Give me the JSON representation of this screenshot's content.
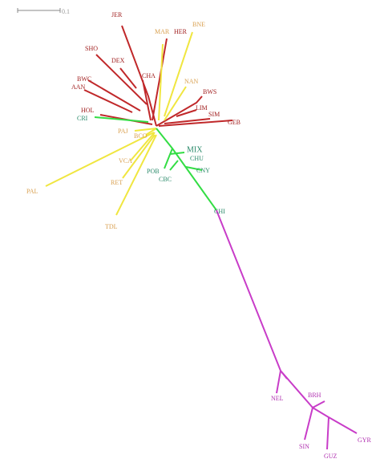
{
  "scale_label": "0.1",
  "nodes": [
    {
      "label": "JER",
      "color": "#a01e1e"
    },
    {
      "label": "MAR",
      "color": "#d9a050"
    },
    {
      "label": "HER",
      "color": "#a01e1e"
    },
    {
      "label": "BNE",
      "color": "#d9a050"
    },
    {
      "label": "SHO",
      "color": "#a01e1e"
    },
    {
      "label": "DEX",
      "color": "#a01e1e"
    },
    {
      "label": "CHA",
      "color": "#a01e1e"
    },
    {
      "label": "BWC",
      "color": "#a01e1e"
    },
    {
      "label": "AAN",
      "color": "#a01e1e"
    },
    {
      "label": "NAN",
      "color": "#d9a050"
    },
    {
      "label": "BWS",
      "color": "#a01e1e"
    },
    {
      "label": "HOL",
      "color": "#a01e1e"
    },
    {
      "label": "LIM",
      "color": "#a01e1e"
    },
    {
      "label": "SIM",
      "color": "#a01e1e"
    },
    {
      "label": "CRI",
      "color": "#2a8a6a"
    },
    {
      "label": "GEB",
      "color": "#a01e1e"
    },
    {
      "label": "PAJ",
      "color": "#d9a050"
    },
    {
      "label": "BCO",
      "color": "#d9a050"
    },
    {
      "label": "MIX",
      "color": "#2a8a6a"
    },
    {
      "label": "CHU",
      "color": "#2a8a6a"
    },
    {
      "label": "VCA",
      "color": "#d9a050"
    },
    {
      "label": "POB",
      "color": "#2a8a6a"
    },
    {
      "label": "CNY",
      "color": "#2a8a6a"
    },
    {
      "label": "CBC",
      "color": "#2a8a6a"
    },
    {
      "label": "RET",
      "color": "#d9a050"
    },
    {
      "label": "PAL",
      "color": "#d9a050"
    },
    {
      "label": "CHI",
      "color": "#2a8a6a"
    },
    {
      "label": "TDL",
      "color": "#d9a050"
    },
    {
      "label": "NEL",
      "color": "#b030b0"
    },
    {
      "label": "BRH",
      "color": "#b030b0"
    },
    {
      "label": "SIN",
      "color": "#b030b0"
    },
    {
      "label": "GUZ",
      "color": "#b030b0"
    },
    {
      "label": "GYR",
      "color": "#b030b0"
    }
  ]
}
